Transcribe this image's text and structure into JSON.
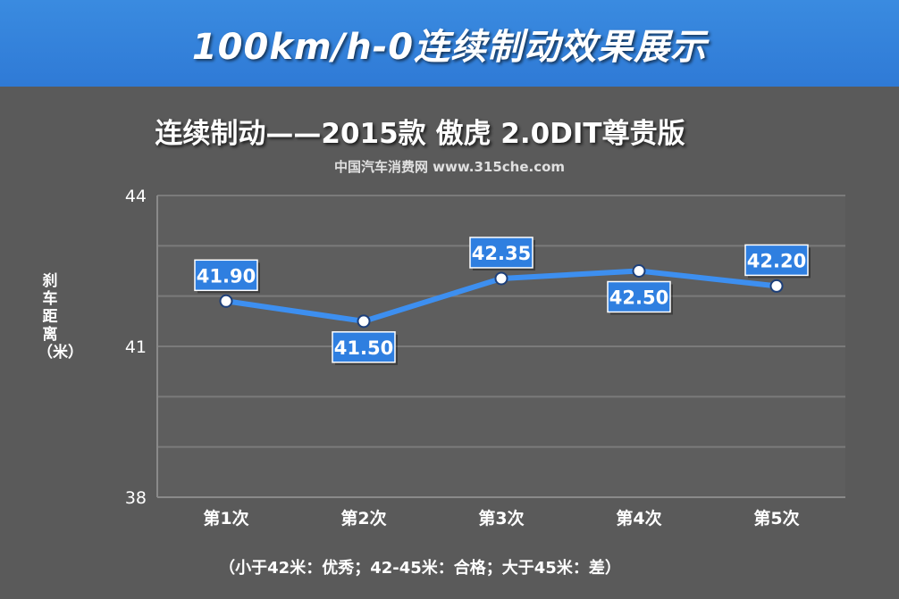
{
  "banner": {
    "title": "100km/h-0连续制动效果展示"
  },
  "watermark": "中国汽车消费网 www.315che.com",
  "footnote": "（小于42米：优秀；42-45米：合格；大于45米：差）",
  "colors": {
    "background": "#5a5a5a",
    "banner": "#3a8be0",
    "line": "#3d8ff0",
    "label_box": "#2f7fe0",
    "grid": "#7b7b7b"
  },
  "chart_data": {
    "type": "line",
    "title": "连续制动——2015款 傲虎 2.0DIT尊贵版",
    "ylabel": "刹车距离（米）",
    "xlabel": "",
    "categories": [
      "第1次",
      "第2次",
      "第3次",
      "第4次",
      "第5次"
    ],
    "values": [
      41.9,
      41.5,
      42.35,
      42.5,
      42.2
    ],
    "data_labels": [
      "41.90",
      "41.50",
      "42.35",
      "42.50",
      "42.20"
    ],
    "ylim": [
      38,
      44
    ],
    "yticks": [
      "38",
      "41",
      "44"
    ],
    "grid": true,
    "legend": "none"
  }
}
